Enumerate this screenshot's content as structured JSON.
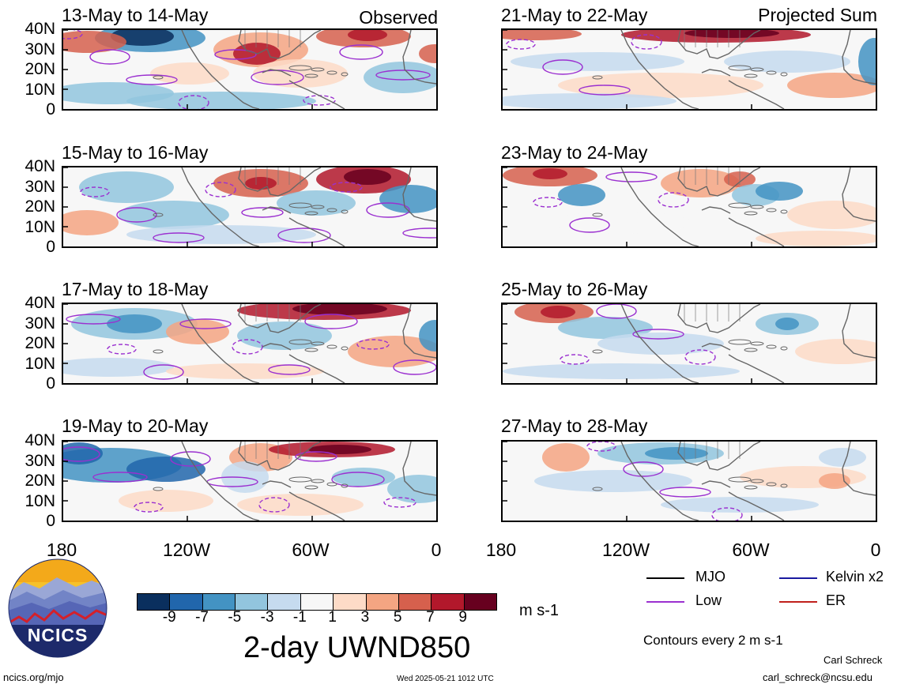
{
  "panels": [
    {
      "id": "p1",
      "title": "13-May to 14-May",
      "tag": "Observed"
    },
    {
      "id": "p2",
      "title": "21-May to 22-May",
      "tag": "Projected Sum"
    },
    {
      "id": "p3",
      "title": "15-May to 16-May",
      "tag": ""
    },
    {
      "id": "p4",
      "title": "23-May to 24-May",
      "tag": ""
    },
    {
      "id": "p5",
      "title": "17-May to 18-May",
      "tag": ""
    },
    {
      "id": "p6",
      "title": "25-May to 26-May",
      "tag": ""
    },
    {
      "id": "p7",
      "title": "19-May to 20-May",
      "tag": ""
    },
    {
      "id": "p8",
      "title": "27-May to 28-May",
      "tag": ""
    }
  ],
  "lat_ticks": [
    "40N",
    "30N",
    "20N",
    "10N",
    "0"
  ],
  "lon_ticks": [
    "180",
    "120W",
    "60W",
    "0"
  ],
  "colorbar": {
    "labels": [
      "-9",
      "-7",
      "-5",
      "-3",
      "-1",
      "1",
      "3",
      "5",
      "7",
      "9"
    ],
    "colors": [
      "#0a2f5e",
      "#2166ac",
      "#4393c3",
      "#92c5de",
      "#c6dbef",
      "#f7f7f7",
      "#fddbc7",
      "#f4a582",
      "#d6604d",
      "#b2182b",
      "#67001f"
    ],
    "units": "m s-1",
    "title": "2-day UWND850"
  },
  "legend": {
    "items": [
      {
        "label": "MJO",
        "color": "#000000"
      },
      {
        "label": "Kelvin x2",
        "color": "#1a1aa0"
      },
      {
        "label": "Low",
        "color": "#9b30d0"
      },
      {
        "label": "ER",
        "color": "#c0201c"
      }
    ],
    "note": "Contours every 2 m s-1"
  },
  "footer": {
    "site": "ncics.org/mjo",
    "timestamp": "Wed 2025-05-21 1012 UTC",
    "author": "Carl Schreck",
    "email": "carl_schreck@ncsu.edu",
    "logo_text": "NCICS"
  }
}
